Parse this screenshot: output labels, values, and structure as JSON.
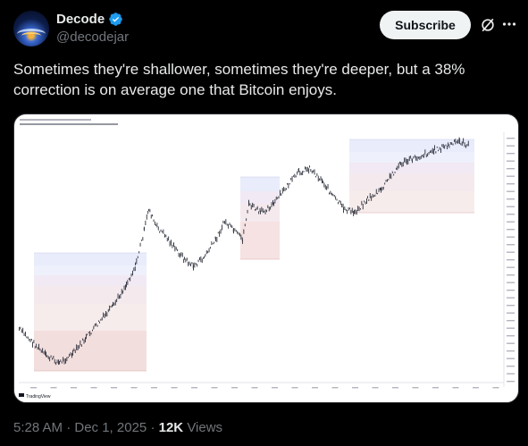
{
  "post": {
    "author": {
      "display_name": "Decode",
      "handle": "@decodejar",
      "verified": true,
      "avatar_icon": "globe-network-avatar"
    },
    "subscribe_label": "Subscribe",
    "text": "Sometimes they're shallower, sometimes they're deeper, but a 38% correction is on average one that Bitcoin enjoys.",
    "timestamp": "5:28 AM · Dec 1, 2025",
    "separator": "·",
    "views_count": "12K",
    "views_label": "Views"
  },
  "chart": {
    "watermark": "TradingView",
    "watermark_icon": "tradingview-logo-icon"
  },
  "colors": {
    "background": "#000000",
    "verified": "#1d9bf0",
    "candles": "#2a2e39"
  }
}
